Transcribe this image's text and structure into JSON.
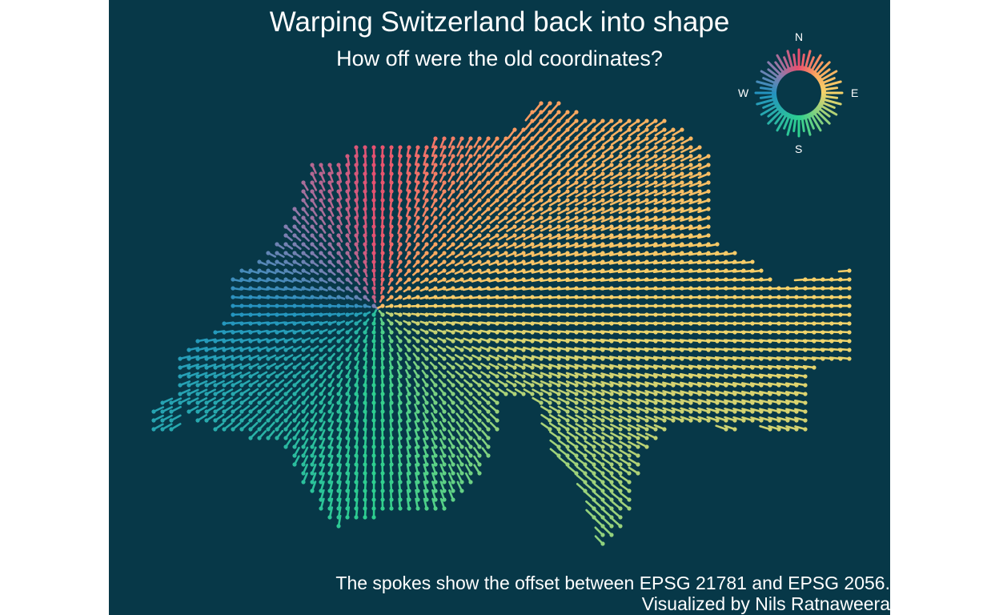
{
  "title": "Warping Switzerland back into shape",
  "subtitle": "How off were the old coordinates?",
  "caption": {
    "line1": "The spokes show the offset between EPSG 21781 and EPSG 2056.",
    "line2": "Visualized by Nils Ratnaweera"
  },
  "legend": {
    "north": "N",
    "east": "E",
    "south": "S",
    "west": "W"
  },
  "colors": {
    "background": "#073848",
    "north": "#e8506f",
    "east": "#f6d36a",
    "south": "#2ed08f",
    "west": "#2493c0",
    "northwest": "#8a7cae",
    "northeast": "#fca85f"
  }
}
